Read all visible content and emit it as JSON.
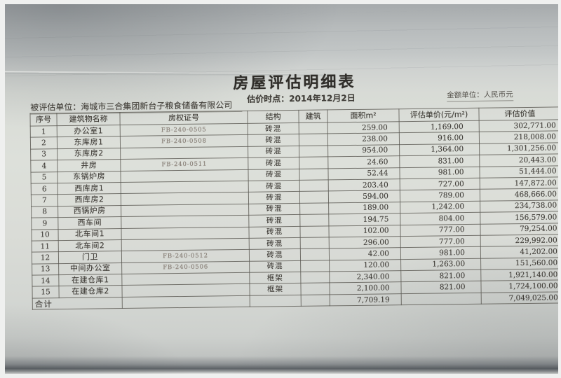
{
  "document": {
    "title": "房屋评估明细表",
    "valuation_date": "估价时点：2014年12月2日",
    "currency_note": "金额单位：人民币元",
    "assessed_entity": "被评估单位：海城市三合集团新台子粮食储备有限公司"
  },
  "table": {
    "columns": [
      "序号",
      "建筑物名称",
      "房权证号",
      "结构",
      "建筑",
      "面积m²",
      "评估单价(元/m²)",
      "评估价值"
    ],
    "rows": [
      {
        "no": "1",
        "name": "办公室1",
        "cert": "FB-240-0505",
        "structure": "砖混",
        "building": "",
        "area": "259.00",
        "unit_price": "1,169.00",
        "value": "302,771.00"
      },
      {
        "no": "2",
        "name": "东库房1",
        "cert": "FB-240-0508",
        "structure": "砖混",
        "building": "",
        "area": "238.00",
        "unit_price": "916.00",
        "value": "218,008.00"
      },
      {
        "no": "3",
        "name": "东库房2",
        "cert": "",
        "structure": "砖混",
        "building": "",
        "area": "954.00",
        "unit_price": "1,364.00",
        "value": "1,301,256.00"
      },
      {
        "no": "4",
        "name": "井房",
        "cert": "FB-240-0511",
        "structure": "砖混",
        "building": "",
        "area": "24.60",
        "unit_price": "831.00",
        "value": "20,443.00"
      },
      {
        "no": "5",
        "name": "东锅炉房",
        "cert": "",
        "structure": "砖混",
        "building": "",
        "area": "52.44",
        "unit_price": "981.00",
        "value": "51,444.00"
      },
      {
        "no": "6",
        "name": "西库房1",
        "cert": "",
        "structure": "砖混",
        "building": "",
        "area": "203.40",
        "unit_price": "727.00",
        "value": "147,872.00"
      },
      {
        "no": "7",
        "name": "西库房2",
        "cert": "",
        "structure": "砖混",
        "building": "",
        "area": "594.00",
        "unit_price": "789.00",
        "value": "468,666.00"
      },
      {
        "no": "8",
        "name": "西锅炉房",
        "cert": "",
        "structure": "砖混",
        "building": "",
        "area": "189.00",
        "unit_price": "1,242.00",
        "value": "234,738.00"
      },
      {
        "no": "9",
        "name": "西车间",
        "cert": "",
        "structure": "砖混",
        "building": "",
        "area": "194.75",
        "unit_price": "804.00",
        "value": "156,579.00"
      },
      {
        "no": "10",
        "name": "北车间1",
        "cert": "",
        "structure": "砖混",
        "building": "",
        "area": "102.00",
        "unit_price": "777.00",
        "value": "79,254.00"
      },
      {
        "no": "11",
        "name": "北车间2",
        "cert": "",
        "structure": "砖混",
        "building": "",
        "area": "296.00",
        "unit_price": "777.00",
        "value": "229,992.00"
      },
      {
        "no": "12",
        "name": "门卫",
        "cert": "FB-240-0512",
        "structure": "砖混",
        "building": "",
        "area": "42.00",
        "unit_price": "981.00",
        "value": "41,202.00"
      },
      {
        "no": "13",
        "name": "中间办公室",
        "cert": "FB-240-0506",
        "structure": "砖混",
        "building": "",
        "area": "120.00",
        "unit_price": "1,263.00",
        "value": "151,560.00"
      },
      {
        "no": "14",
        "name": "在建仓库1",
        "cert": "",
        "structure": "框架",
        "building": "",
        "area": "2,340.00",
        "unit_price": "821.00",
        "value": "1,921,140.00"
      },
      {
        "no": "15",
        "name": "在建仓库2",
        "cert": "",
        "structure": "框架",
        "building": "",
        "area": "2,100.00",
        "unit_price": "821.00",
        "value": "1,724,100.00"
      }
    ],
    "total": {
      "label": "合计",
      "area": "7,709.19",
      "value": "7,049,025.00"
    }
  },
  "colors": {
    "paper": "#dadcd7",
    "background_gray": "#b4b8b9",
    "grid_line": "#55524b",
    "ink": "#3c3a36",
    "cert_ink": "#8b8178",
    "bottom_shadow": "#5e6367"
  }
}
